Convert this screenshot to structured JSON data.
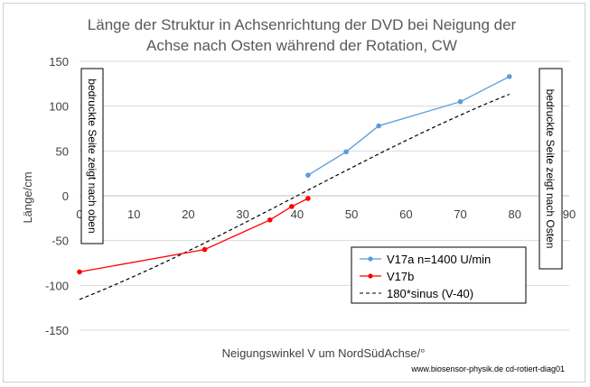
{
  "chart_data": {
    "type": "line",
    "title_lines": [
      "Länge der Struktur in Achsenrichtung der DVD bei Neigung der",
      "Achse nach Osten während der Rotation, CW"
    ],
    "xlabel": "Neigungswinkel V um NordSüdAchse/°",
    "ylabel": "Länge/cm",
    "xlim": [
      0,
      90
    ],
    "ylim": [
      -150,
      150
    ],
    "x_ticks": [
      0,
      10,
      20,
      30,
      40,
      50,
      60,
      70,
      80,
      90
    ],
    "y_ticks": [
      -150,
      -100,
      -50,
      0,
      50,
      100,
      150
    ],
    "grid": "horizontal",
    "legend_position": "bottom-right",
    "series": [
      {
        "name": "V17a n=1400 U/min",
        "color": "#5b9bd5",
        "style": "line-markers",
        "points": [
          [
            42,
            23
          ],
          [
            49,
            49
          ],
          [
            55,
            78
          ],
          [
            70,
            105
          ],
          [
            79,
            133
          ]
        ]
      },
      {
        "name": "V17b",
        "color": "#ff0000",
        "style": "line-markers",
        "points": [
          [
            0,
            -85
          ],
          [
            23,
            -60
          ],
          [
            35,
            -27
          ],
          [
            39,
            -12
          ],
          [
            42,
            -3
          ]
        ]
      },
      {
        "name": "180*sinus (V-40)",
        "color": "#000000",
        "style": "dashed",
        "function": "180*sin(V-40)",
        "x_range": [
          0,
          79
        ]
      }
    ],
    "annotations": [
      {
        "text": "bedruckte Seite zeigt nach oben",
        "position": "left",
        "orientation": "vertical"
      },
      {
        "text": "bedruckte Seite zeigt nach  Osten",
        "position": "right",
        "orientation": "vertical"
      }
    ]
  },
  "footer_text": "www.biosensor-physik.de  cd-rotiert-diag01"
}
